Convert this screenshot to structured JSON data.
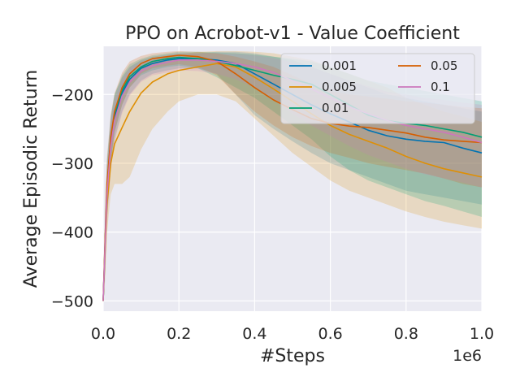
{
  "chart_data": {
    "type": "line",
    "title": "PPO on Acrobot-v1 - Value Coefficient",
    "xlabel": "#Steps",
    "ylabel": "Average Episodic Return",
    "x_offset_label": "1e6",
    "xlim": [
      0,
      1.0
    ],
    "ylim": [
      -515,
      -130
    ],
    "x_ticks": [
      0.0,
      0.2,
      0.4,
      0.6,
      0.8,
      1.0
    ],
    "x_tick_labels": [
      "0.0",
      "0.2",
      "0.4",
      "0.6",
      "0.8",
      "1.0"
    ],
    "y_ticks": [
      -500,
      -400,
      -300,
      -200
    ],
    "y_tick_labels": [
      "−500",
      "−400",
      "−300",
      "−200"
    ],
    "grid": true,
    "background": "#eaeaf2",
    "legend_position": "top-right",
    "x": [
      0.0,
      0.005,
      0.01,
      0.02,
      0.03,
      0.05,
      0.07,
      0.1,
      0.13,
      0.17,
      0.2,
      0.25,
      0.3,
      0.35,
      0.4,
      0.45,
      0.5,
      0.55,
      0.6,
      0.65,
      0.7,
      0.75,
      0.8,
      0.85,
      0.9,
      0.95,
      1.0
    ],
    "series": [
      {
        "name": "0.001",
        "color": "#0173b2",
        "values": [
          -500,
          -420,
          -340,
          -270,
          -232,
          -198,
          -178,
          -162,
          -155,
          -150,
          -148,
          -148,
          -150,
          -155,
          -170,
          -185,
          -200,
          -215,
          -228,
          -240,
          -252,
          -260,
          -265,
          -268,
          -270,
          -278,
          -285
        ],
        "lower": [
          -500,
          -460,
          -380,
          -310,
          -265,
          -225,
          -200,
          -180,
          -170,
          -165,
          -162,
          -162,
          -170,
          -200,
          -230,
          -250,
          -268,
          -285,
          -300,
          -310,
          -320,
          -330,
          -340,
          -345,
          -350,
          -355,
          -360
        ],
        "upper": [
          -500,
          -380,
          -300,
          -235,
          -200,
          -175,
          -160,
          -150,
          -145,
          -142,
          -140,
          -140,
          -138,
          -138,
          -140,
          -145,
          -150,
          -160,
          -170,
          -180,
          -190,
          -200,
          -205,
          -210,
          -215,
          -220,
          -225
        ]
      },
      {
        "name": "0.005",
        "color": "#de8f05",
        "values": [
          -500,
          -430,
          -360,
          -300,
          -272,
          -248,
          -225,
          -198,
          -182,
          -170,
          -165,
          -160,
          -155,
          -160,
          -175,
          -192,
          -210,
          -228,
          -245,
          -258,
          -268,
          -278,
          -290,
          -300,
          -308,
          -314,
          -320
        ],
        "lower": [
          -500,
          -470,
          -400,
          -345,
          -330,
          -330,
          -320,
          -280,
          -250,
          -225,
          -210,
          -200,
          -200,
          -210,
          -235,
          -260,
          -285,
          -305,
          -325,
          -340,
          -350,
          -360,
          -370,
          -378,
          -385,
          -390,
          -395
        ],
        "upper": [
          -500,
          -390,
          -320,
          -255,
          -220,
          -190,
          -170,
          -158,
          -150,
          -145,
          -142,
          -138,
          -137,
          -137,
          -138,
          -140,
          -145,
          -150,
          -160,
          -170,
          -180,
          -190,
          -205,
          -215,
          -225,
          -232,
          -240
        ]
      },
      {
        "name": "0.01",
        "color": "#029e73",
        "values": [
          -500,
          -415,
          -335,
          -265,
          -228,
          -194,
          -174,
          -160,
          -152,
          -148,
          -146,
          -148,
          -152,
          -158,
          -165,
          -172,
          -178,
          -185,
          -200,
          -215,
          -230,
          -238,
          -242,
          -245,
          -250,
          -255,
          -262
        ],
        "lower": [
          -500,
          -455,
          -375,
          -300,
          -255,
          -215,
          -190,
          -172,
          -165,
          -160,
          -158,
          -162,
          -175,
          -190,
          -205,
          -225,
          -245,
          -265,
          -290,
          -310,
          -325,
          -335,
          -345,
          -355,
          -362,
          -370,
          -378
        ],
        "upper": [
          -500,
          -375,
          -295,
          -232,
          -200,
          -172,
          -156,
          -148,
          -143,
          -140,
          -138,
          -138,
          -139,
          -140,
          -142,
          -145,
          -148,
          -152,
          -160,
          -170,
          -180,
          -185,
          -190,
          -195,
          -200,
          -205,
          -210
        ]
      },
      {
        "name": "0.05",
        "color": "#d55e00",
        "values": [
          -500,
          -410,
          -330,
          -262,
          -225,
          -190,
          -170,
          -155,
          -148,
          -145,
          -143,
          -145,
          -152,
          -170,
          -190,
          -208,
          -222,
          -235,
          -242,
          -246,
          -248,
          -252,
          -256,
          -262,
          -266,
          -268,
          -270
        ],
        "lower": [
          -500,
          -450,
          -370,
          -300,
          -255,
          -215,
          -190,
          -170,
          -162,
          -158,
          -156,
          -160,
          -172,
          -200,
          -225,
          -245,
          -262,
          -275,
          -285,
          -292,
          -300,
          -305,
          -310,
          -315,
          -322,
          -330,
          -335
        ],
        "upper": [
          -500,
          -370,
          -290,
          -228,
          -198,
          -168,
          -152,
          -144,
          -140,
          -138,
          -137,
          -138,
          -140,
          -145,
          -152,
          -160,
          -172,
          -185,
          -195,
          -200,
          -203,
          -206,
          -210,
          -212,
          -215,
          -218,
          -220
        ]
      },
      {
        "name": "0.1",
        "color": "#cc78bc",
        "values": [
          -500,
          -420,
          -345,
          -275,
          -238,
          -202,
          -182,
          -166,
          -158,
          -153,
          -150,
          -150,
          -152,
          -155,
          -160,
          -168,
          -180,
          -192,
          -205,
          -218,
          -228,
          -238,
          -245,
          -250,
          -255,
          -262,
          -270
        ],
        "lower": [
          -500,
          -460,
          -385,
          -312,
          -268,
          -228,
          -202,
          -182,
          -172,
          -168,
          -165,
          -166,
          -170,
          -178,
          -190,
          -208,
          -228,
          -245,
          -260,
          -275,
          -288,
          -298,
          -308,
          -316,
          -322,
          -328,
          -335
        ],
        "upper": [
          -500,
          -380,
          -305,
          -240,
          -208,
          -178,
          -162,
          -152,
          -147,
          -143,
          -141,
          -140,
          -140,
          -141,
          -143,
          -147,
          -153,
          -160,
          -170,
          -180,
          -188,
          -196,
          -200,
          -205,
          -208,
          -212,
          -215
        ]
      }
    ]
  }
}
